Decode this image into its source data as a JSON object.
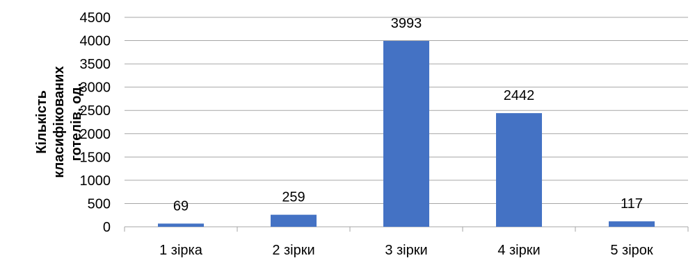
{
  "chart_data": {
    "type": "bar",
    "categories": [
      "1 зірка",
      "2 зірки",
      "3 зірки",
      "4 зірки",
      "5 зірок"
    ],
    "values": [
      69,
      259,
      3993,
      2442,
      117
    ],
    "data_labels": [
      "69",
      "259",
      "3993",
      "2442",
      "117"
    ],
    "title": "",
    "xlabel": "",
    "ylabel_lines": [
      "Кількість",
      "класифікованих",
      "готелів, од."
    ],
    "ylim": [
      0,
      4500
    ],
    "yticks": [
      0,
      500,
      1000,
      1500,
      2000,
      2500,
      3000,
      3500,
      4000,
      4500
    ],
    "grid": true,
    "legend": "none",
    "bar_color": "#4472C4",
    "grid_color": "#A6A6A6"
  }
}
